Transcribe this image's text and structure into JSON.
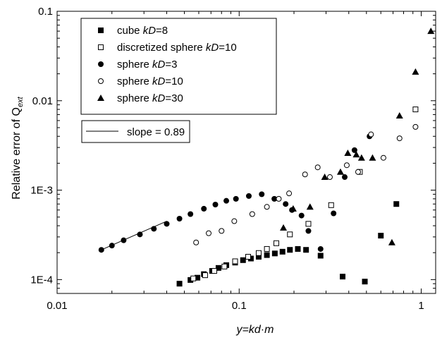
{
  "chart_data": {
    "type": "scatter",
    "x_scale": "log",
    "y_scale": "log",
    "xlim": [
      0.01,
      1.2
    ],
    "ylim": [
      7e-05,
      0.1
    ],
    "x_ticks": [
      {
        "value": 0.01,
        "label": "0.01"
      },
      {
        "value": 0.1,
        "label": "0.1"
      },
      {
        "value": 1,
        "label": "1"
      }
    ],
    "y_ticks": [
      {
        "value": 0.0001,
        "label": "1E-4"
      },
      {
        "value": 0.001,
        "label": "1E-3"
      },
      {
        "value": 0.01,
        "label": "0.01"
      },
      {
        "value": 0.1,
        "label": "0.1"
      }
    ],
    "xlabel": {
      "pre": "y=kd",
      "dot": "·",
      "post": "m"
    },
    "ylabel": {
      "main": "Relative error of Q",
      "sub": "ext"
    },
    "grid": false,
    "legend_position": "top-left",
    "series": [
      {
        "name_pre": "cube ",
        "name_em": "kD",
        "name_post": "=8",
        "marker": "filled-square",
        "x": [
          0.047,
          0.054,
          0.059,
          0.064,
          0.071,
          0.077,
          0.085,
          0.095,
          0.105,
          0.116,
          0.128,
          0.142,
          0.157,
          0.173,
          0.19,
          0.21,
          0.233,
          0.28,
          0.37,
          0.49,
          0.6,
          0.73
        ],
        "y": [
          9e-05,
          9.9e-05,
          0.000105,
          0.000115,
          0.000125,
          0.000135,
          0.000145,
          0.000155,
          0.000165,
          0.000172,
          0.00018,
          0.000188,
          0.000196,
          0.000205,
          0.000215,
          0.00022,
          0.000215,
          0.000185,
          0.000108,
          9.5e-05,
          0.00031,
          0.0007
        ]
      },
      {
        "name_pre": "discretized sphere ",
        "name_em": "kD",
        "name_post": "=10",
        "marker": "open-square",
        "x": [
          0.056,
          0.065,
          0.073,
          0.083,
          0.095,
          0.112,
          0.128,
          0.142,
          0.16,
          0.19,
          0.24,
          0.32,
          0.46,
          0.93
        ],
        "y": [
          0.000103,
          0.000112,
          0.000125,
          0.00014,
          0.00016,
          0.00018,
          0.000198,
          0.00022,
          0.000255,
          0.00032,
          0.00042,
          0.00068,
          0.0016,
          0.008
        ]
      },
      {
        "name_pre": "sphere ",
        "name_em": "kD",
        "name_post": "=3",
        "marker": "filled-circle",
        "x": [
          0.0175,
          0.02,
          0.0232,
          0.0285,
          0.034,
          0.04,
          0.047,
          0.054,
          0.064,
          0.074,
          0.085,
          0.096,
          0.113,
          0.133,
          0.156,
          0.18,
          0.195,
          0.22,
          0.24,
          0.28,
          0.33,
          0.38,
          0.43,
          0.52
        ],
        "y": [
          0.000215,
          0.00024,
          0.000275,
          0.00032,
          0.00037,
          0.00042,
          0.00048,
          0.00054,
          0.00062,
          0.00069,
          0.00076,
          0.0008,
          0.00086,
          0.0009,
          0.0008,
          0.0007,
          0.0006,
          0.00052,
          0.00035,
          0.00022,
          0.00055,
          0.0014,
          0.0028,
          0.004
        ]
      },
      {
        "name_pre": "sphere ",
        "name_em": "kD",
        "name_post": "=10",
        "marker": "open-circle",
        "x": [
          0.058,
          0.068,
          0.08,
          0.094,
          0.118,
          0.142,
          0.165,
          0.188,
          0.23,
          0.27,
          0.315,
          0.39,
          0.45,
          0.53,
          0.62,
          0.76,
          0.93
        ],
        "y": [
          0.00026,
          0.00033,
          0.00035,
          0.00045,
          0.00054,
          0.00065,
          0.0008,
          0.00092,
          0.0015,
          0.0018,
          0.0014,
          0.0019,
          0.0016,
          0.0042,
          0.0023,
          0.0038,
          0.0051
        ]
      },
      {
        "name_pre": "sphere ",
        "name_em": "kD",
        "name_post": "=30",
        "marker": "filled-triangle",
        "x": [
          0.175,
          0.198,
          0.245,
          0.295,
          0.36,
          0.395,
          0.44,
          0.47,
          0.54,
          0.69,
          0.76,
          0.93,
          1.13
        ],
        "y": [
          0.00038,
          0.00062,
          0.00065,
          0.0014,
          0.0016,
          0.0026,
          0.0025,
          0.0023,
          0.0023,
          0.00026,
          0.0068,
          0.021,
          0.06
        ]
      }
    ],
    "fit_line": {
      "label": "slope = 0.89",
      "slope": 0.89,
      "x": [
        0.0175,
        0.04
      ],
      "y": [
        0.000215,
        0.00045
      ]
    }
  }
}
